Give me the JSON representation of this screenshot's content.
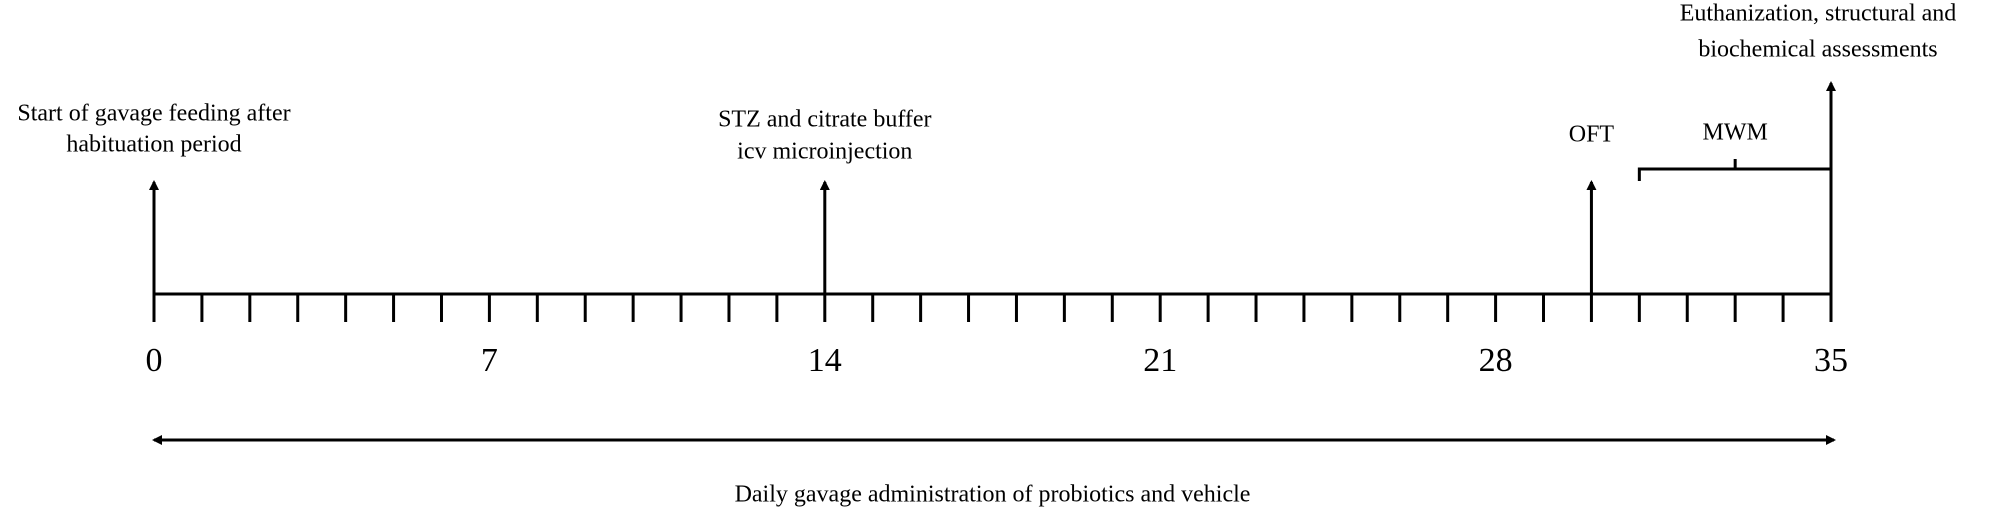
{
  "timeline": {
    "start": 0,
    "end": 35,
    "labeled_days": [
      0,
      7,
      14,
      21,
      28,
      35
    ]
  },
  "events": [
    {
      "day": 0,
      "label": [
        "Start of gavage feeding after",
        "habituation period"
      ]
    },
    {
      "day": 14,
      "label": [
        "STZ and citrate buffer",
        "icv microinjection"
      ]
    },
    {
      "day": 30,
      "label": [
        "OFT"
      ]
    },
    {
      "day": 35,
      "label": [
        "Euthanization, structural and",
        "biochemical assessments"
      ]
    }
  ],
  "period": {
    "start": 31,
    "end": 35,
    "label": "MWM"
  },
  "span": {
    "start": 0,
    "end": 35,
    "label": "Daily gavage administration of probiotics and vehicle"
  }
}
